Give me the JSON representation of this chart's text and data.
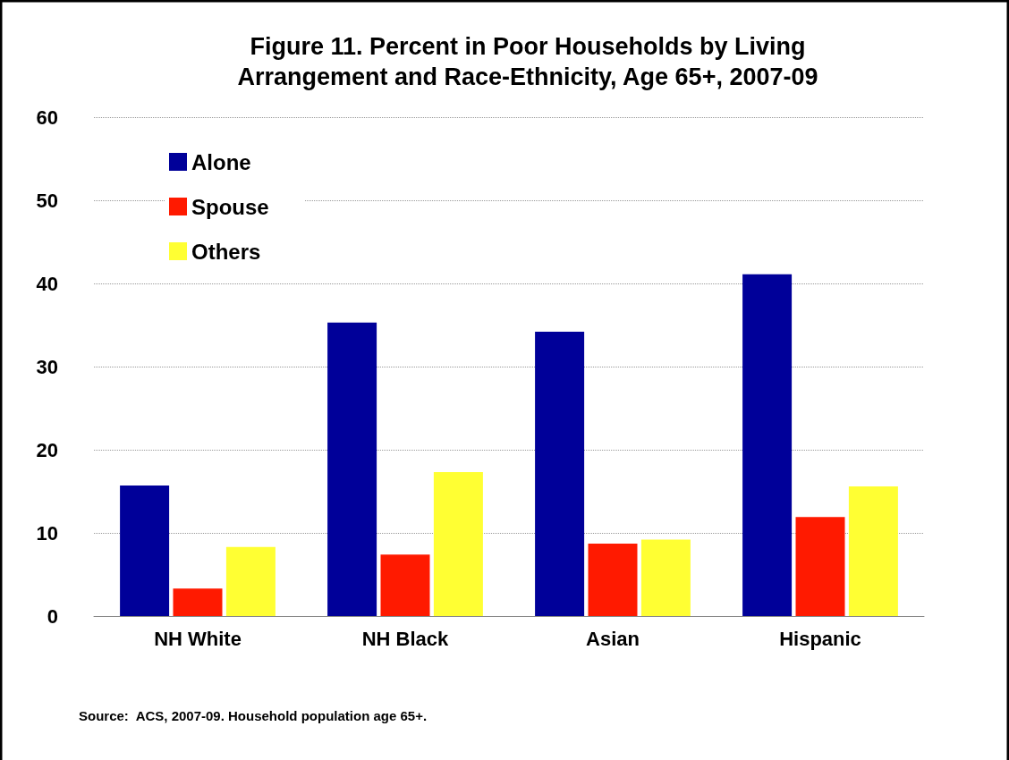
{
  "chart_data": {
    "type": "bar",
    "title": "Figure 11. Percent in Poor Households by Living\nArrangement and Race-Ethnicity, Age 65+, 2007-09",
    "categories": [
      "NH White",
      "NH Black",
      "Asian",
      "Hispanic"
    ],
    "series": [
      {
        "name": "Alone",
        "color": "#000099",
        "values": [
          15.7,
          35.3,
          34.2,
          41.1
        ]
      },
      {
        "name": "Spouse",
        "color": "#ff1a00",
        "values": [
          3.3,
          7.4,
          8.7,
          11.9
        ]
      },
      {
        "name": "Others",
        "color": "#ffff33",
        "values": [
          8.3,
          17.3,
          9.2,
          15.6
        ]
      }
    ],
    "ylim": [
      0,
      60
    ],
    "yticks": [
      0,
      10,
      20,
      30,
      40,
      50,
      60
    ],
    "grid": "y",
    "legend": "top left",
    "annotations": [
      "Source:  ACS, 2007-09. Household population age 65+."
    ]
  }
}
